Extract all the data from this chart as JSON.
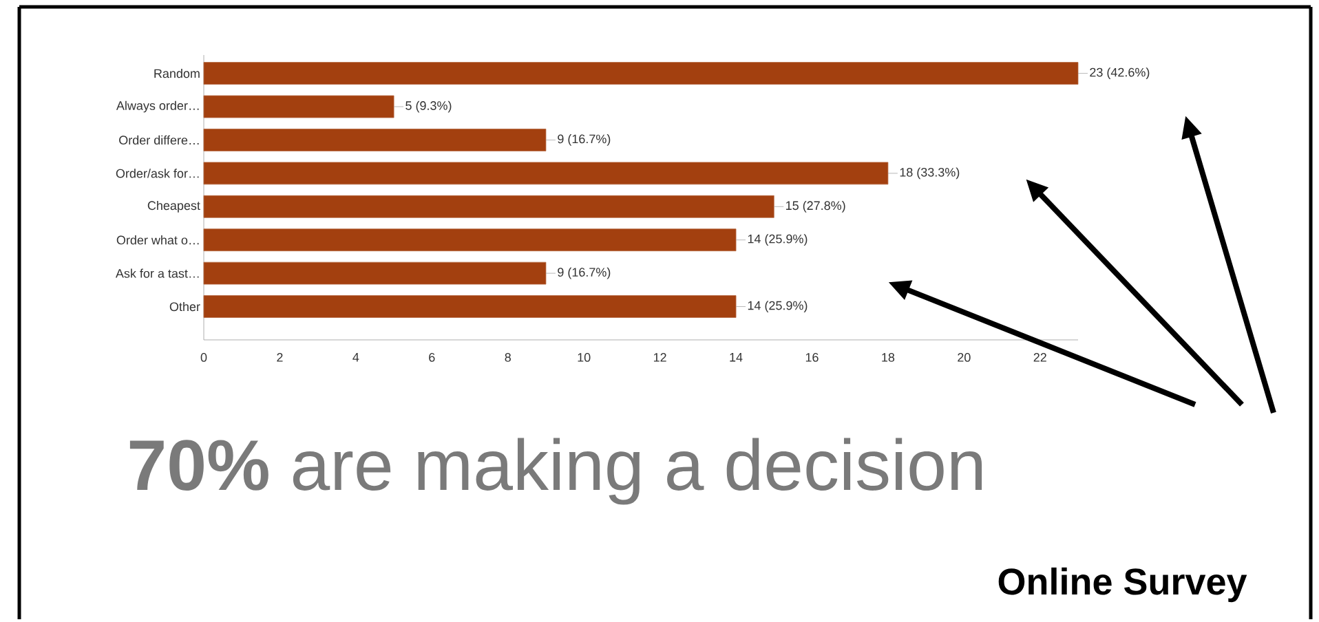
{
  "chart_data": {
    "type": "bar",
    "orientation": "horizontal",
    "categories": [
      "Random",
      "Always order…",
      "Order differe…",
      "Order/ask for…",
      "Cheapest",
      "Order what o…",
      "Ask for a tast…",
      "Other"
    ],
    "values": [
      23,
      5,
      9,
      18,
      15,
      14,
      9,
      14
    ],
    "value_labels": [
      "23 (42.6%)",
      "5 (9.3%)",
      "9 (16.7%)",
      "18 (33.3%)",
      "15 (27.8%)",
      "14 (25.9%)",
      "9 (16.7%)",
      "14 (25.9%)"
    ],
    "color": "#a3400f",
    "xlim": [
      0,
      23
    ],
    "xticks": [
      0,
      2,
      4,
      6,
      8,
      10,
      12,
      14,
      16,
      18,
      20,
      22
    ],
    "grid": false,
    "annotations": [
      "**70%** are making a decision",
      "Online Survey"
    ]
  }
}
